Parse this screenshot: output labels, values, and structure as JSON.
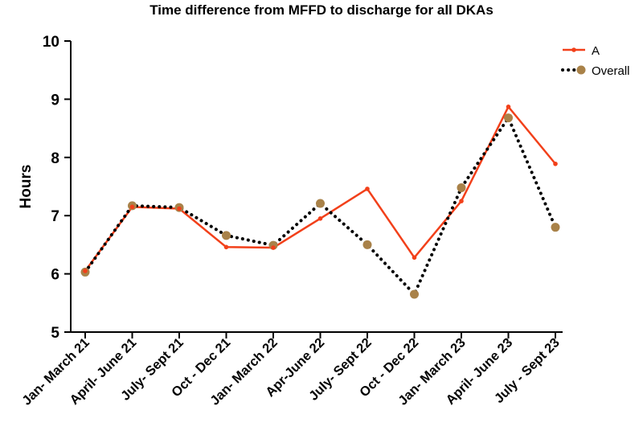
{
  "chart_data": {
    "type": "line",
    "title": "Time difference from MFFD to discharge for all DKAs",
    "xlabel": "",
    "ylabel": "Hours",
    "ylim": [
      5,
      10
    ],
    "yticks": [
      "5",
      "6",
      "7",
      "8",
      "9",
      "10"
    ],
    "grid": false,
    "legend_position": "top-right",
    "categories": [
      "Jan- March 21",
      "April- June 21",
      "July- Sept 21",
      "Oct - Dec 21",
      "Jan- March 22",
      "Apr-June 22",
      "July- Sept 22",
      "Oct - Dec 22",
      "Jan- March 23",
      "April- June 23",
      "July - Sept 23"
    ],
    "series": [
      {
        "name": "A",
        "style": "solid-line-small-markers",
        "color": "#f2401a",
        "values": [
          6.05,
          7.15,
          7.12,
          6.46,
          6.45,
          6.95,
          7.46,
          6.28,
          7.25,
          8.87,
          7.89
        ]
      },
      {
        "name": "Overall",
        "style": "dotted-line-large-markers",
        "color": "#000000",
        "marker_color": "#a98249",
        "values": [
          6.03,
          7.17,
          7.14,
          6.66,
          6.49,
          7.21,
          6.5,
          5.65,
          7.48,
          8.68,
          6.8
        ]
      }
    ]
  }
}
